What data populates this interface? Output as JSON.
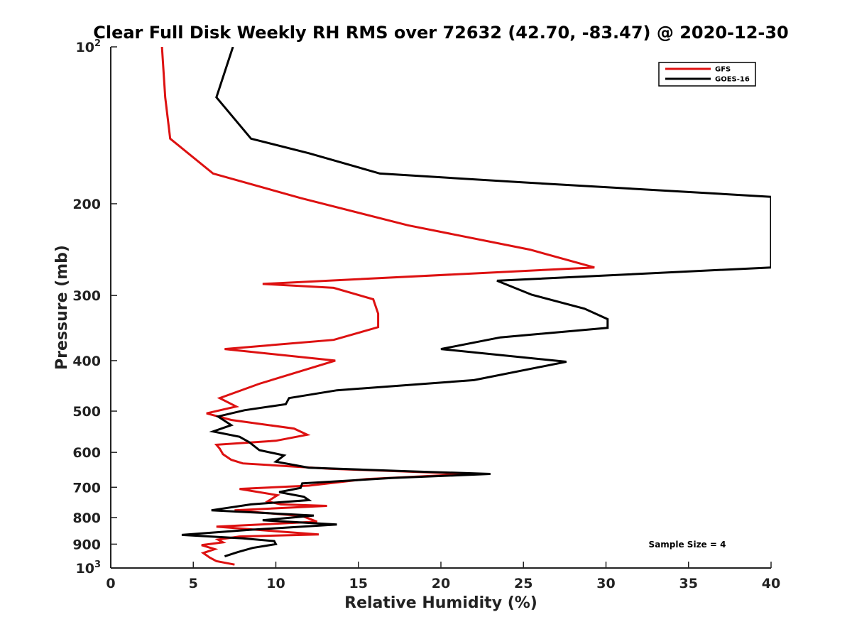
{
  "chart_data": {
    "type": "line",
    "title": "Clear Full Disk Weekly RH RMS over 72632 (42.70, -83.47) @ 2020-12-30",
    "xlabel": "Relative Humidity (%)",
    "ylabel": "Pressure (mb)",
    "xlim": [
      0,
      40
    ],
    "ylim": [
      100,
      1000
    ],
    "y_scale": "log",
    "y_reversed": true,
    "grid": false,
    "legend_position": "top-right",
    "x_ticks": [
      "0",
      "5",
      "10",
      "15",
      "20",
      "25",
      "30",
      "35",
      "40"
    ],
    "x_tick_values": [
      0,
      5,
      10,
      15,
      20,
      25,
      30,
      35,
      40
    ],
    "y_tick_values": [
      100,
      200,
      300,
      400,
      500,
      600,
      700,
      800,
      900,
      1000
    ],
    "y_ticks": [
      {
        "base": "10",
        "exp": "2"
      },
      {
        "base": "200",
        "exp": ""
      },
      {
        "base": "300",
        "exp": ""
      },
      {
        "base": "400",
        "exp": ""
      },
      {
        "base": "500",
        "exp": ""
      },
      {
        "base": "600",
        "exp": ""
      },
      {
        "base": "700",
        "exp": ""
      },
      {
        "base": "800",
        "exp": ""
      },
      {
        "base": "900",
        "exp": ""
      },
      {
        "base": "10",
        "exp": "3"
      }
    ],
    "annotation": "Sample Size = 4",
    "series": [
      {
        "name": "GFS",
        "color": "#dd1111",
        "points": [
          [
            3.1,
            100
          ],
          [
            3.3,
            125
          ],
          [
            3.6,
            150
          ],
          [
            6.2,
            175
          ],
          [
            11.5,
            195
          ],
          [
            18.0,
            220
          ],
          [
            25.4,
            245
          ],
          [
            29.3,
            265
          ],
          [
            9.2,
            285
          ],
          [
            13.5,
            290
          ],
          [
            15.9,
            305
          ],
          [
            16.2,
            325
          ],
          [
            16.2,
            345
          ],
          [
            13.5,
            365
          ],
          [
            6.9,
            380
          ],
          [
            13.6,
            400
          ],
          [
            9.0,
            443
          ],
          [
            6.6,
            472
          ],
          [
            7.6,
            490
          ],
          [
            5.8,
            505
          ],
          [
            7.3,
            520
          ],
          [
            11.1,
            540
          ],
          [
            11.9,
            555
          ],
          [
            10.0,
            570
          ],
          [
            6.4,
            580
          ],
          [
            6.6,
            590
          ],
          [
            6.8,
            605
          ],
          [
            7.3,
            620
          ],
          [
            8.0,
            630
          ],
          [
            13.3,
            645
          ],
          [
            21.8,
            660
          ],
          [
            15.5,
            675
          ],
          [
            12.0,
            695
          ],
          [
            7.8,
            705
          ],
          [
            10.1,
            725
          ],
          [
            9.5,
            745
          ],
          [
            10.3,
            755
          ],
          [
            13.1,
            760
          ],
          [
            7.5,
            775
          ],
          [
            11.6,
            795
          ],
          [
            12.5,
            815
          ],
          [
            6.4,
            833
          ],
          [
            10.0,
            850
          ],
          [
            12.6,
            862
          ],
          [
            7.8,
            870
          ],
          [
            6.5,
            882
          ],
          [
            6.8,
            893
          ],
          [
            5.5,
            904
          ],
          [
            6.3,
            920
          ],
          [
            5.6,
            936
          ],
          [
            6.0,
            955
          ],
          [
            6.4,
            970
          ],
          [
            7.5,
            985
          ]
        ]
      },
      {
        "name": "GOES-16",
        "color": "#000000",
        "points": [
          [
            7.4,
            100
          ],
          [
            6.4,
            125
          ],
          [
            8.5,
            150
          ],
          [
            12.0,
            160
          ],
          [
            16.3,
            175
          ],
          [
            25.0,
            182
          ],
          [
            40.0,
            194
          ],
          [
            40.0,
            265
          ],
          [
            23.4,
            281
          ],
          [
            25.5,
            299
          ],
          [
            28.7,
            318
          ],
          [
            30.1,
            333
          ],
          [
            30.1,
            346
          ],
          [
            23.6,
            361
          ],
          [
            20.0,
            380
          ],
          [
            27.6,
            402
          ],
          [
            22.0,
            436
          ],
          [
            13.7,
            456
          ],
          [
            10.8,
            472
          ],
          [
            10.6,
            485
          ],
          [
            8.1,
            498
          ],
          [
            6.5,
            512
          ],
          [
            7.3,
            532
          ],
          [
            6.2,
            547
          ],
          [
            7.8,
            560
          ],
          [
            8.4,
            574
          ],
          [
            9.0,
            594
          ],
          [
            10.5,
            608
          ],
          [
            10.0,
            625
          ],
          [
            12.0,
            642
          ],
          [
            18.0,
            652
          ],
          [
            23.0,
            660
          ],
          [
            17.0,
            672
          ],
          [
            11.6,
            688
          ],
          [
            11.5,
            702
          ],
          [
            10.2,
            715
          ],
          [
            11.7,
            730
          ],
          [
            12.0,
            741
          ],
          [
            8.5,
            755
          ],
          [
            6.1,
            775
          ],
          [
            12.3,
            793
          ],
          [
            9.2,
            810
          ],
          [
            13.7,
            825
          ],
          [
            8.4,
            845
          ],
          [
            4.3,
            864
          ],
          [
            8.0,
            877
          ],
          [
            9.9,
            888
          ],
          [
            10.0,
            900
          ],
          [
            8.6,
            915
          ],
          [
            7.7,
            932
          ],
          [
            6.9,
            950
          ]
        ]
      }
    ]
  }
}
